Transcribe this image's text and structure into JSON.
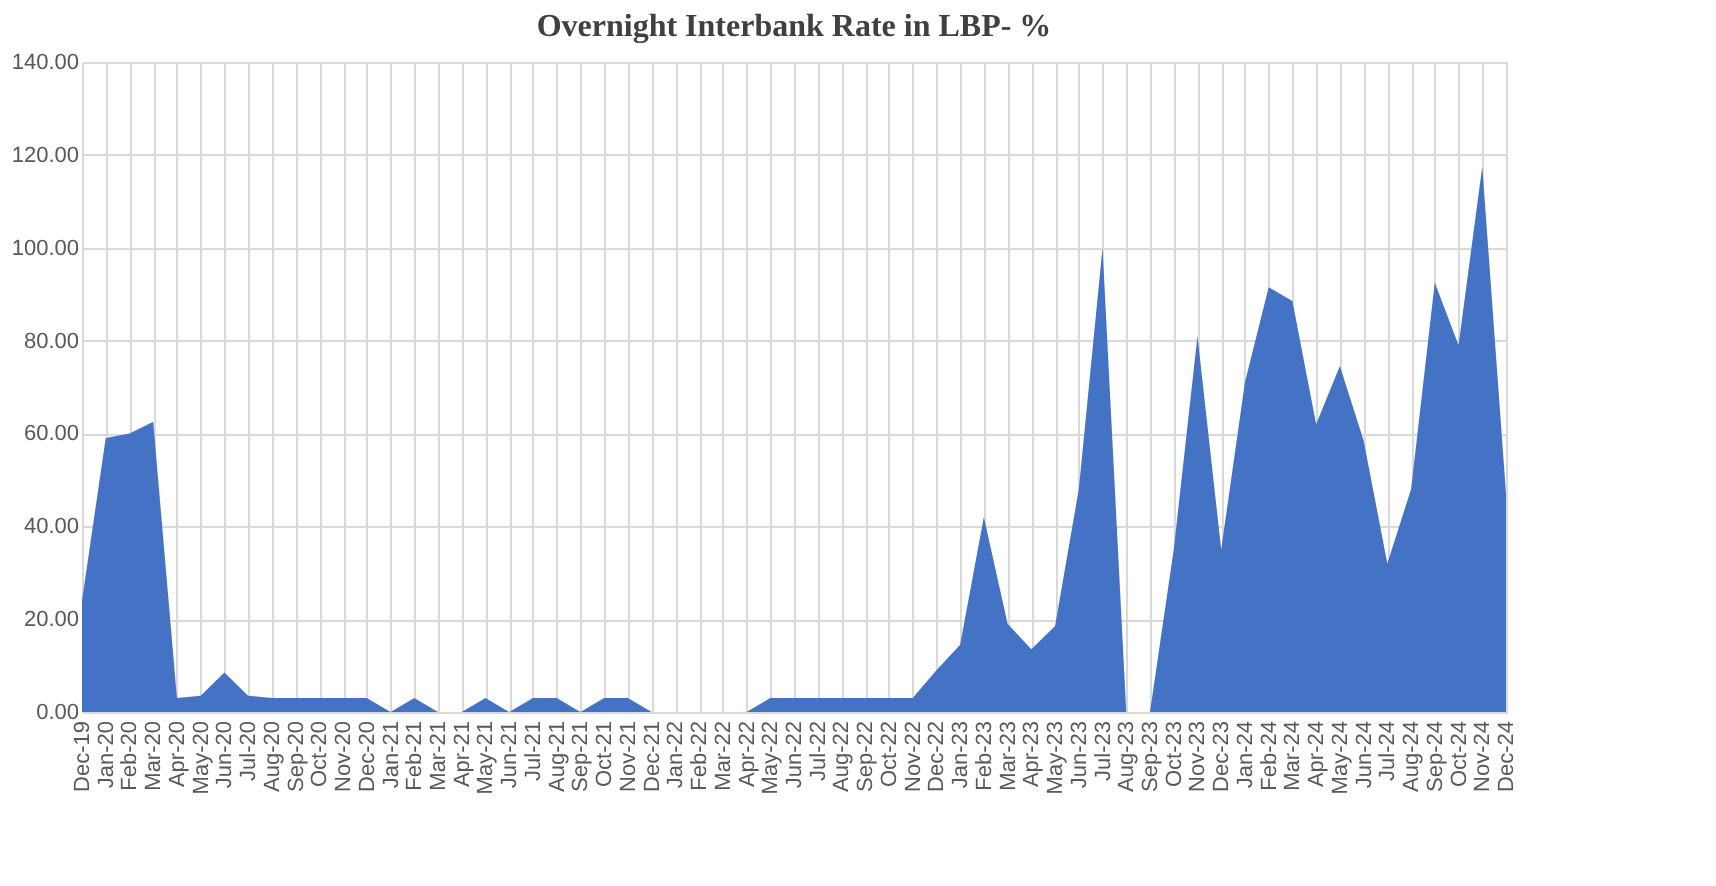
{
  "chart_data": {
    "type": "area",
    "title": "Overnight Interbank Rate in LBP- %",
    "categories": [
      "Dec-19",
      "Jan-20",
      "Feb-20",
      "Mar-20",
      "Apr-20",
      "May-20",
      "Jun-20",
      "Jul-20",
      "Aug-20",
      "Sep-20",
      "Oct-20",
      "Nov-20",
      "Dec-20",
      "Jan-21",
      "Feb-21",
      "Mar-21",
      "Apr-21",
      "May-21",
      "Jun-21",
      "Jul-21",
      "Aug-21",
      "Sep-21",
      "Oct-21",
      "Nov-21",
      "Dec-21",
      "Jan-22",
      "Feb-22",
      "Mar-22",
      "Apr-22",
      "May-22",
      "Jun-22",
      "Jul-22",
      "Aug-22",
      "Sep-22",
      "Oct-22",
      "Nov-22",
      "Dec-22",
      "Jan-23",
      "Feb-23",
      "Mar-23",
      "Apr-23",
      "May-23",
      "Jun-23",
      "Jul-23",
      "Aug-23",
      "Sep-23",
      "Oct-23",
      "Nov-23",
      "Dec-23",
      "Jan-24",
      "Feb-24",
      "Mar-24",
      "Apr-24",
      "May-24",
      "Jun-24",
      "Jul-24",
      "Aug-24",
      "Sep-24",
      "Oct-24",
      "Nov-24",
      "Dec-24"
    ],
    "series": [
      {
        "color": "#4472c4",
        "values": [
          24,
          59,
          60,
          62.5,
          3,
          3.5,
          8.5,
          3.5,
          3,
          3,
          3,
          3,
          3,
          0,
          3,
          0,
          0,
          3,
          0,
          3,
          3,
          0,
          3,
          3,
          0,
          0,
          0,
          0,
          0,
          3,
          3,
          3,
          3,
          3,
          3,
          3,
          9,
          14.5,
          42,
          19,
          13.5,
          18.5,
          48,
          100,
          0,
          0,
          35,
          81,
          35,
          71,
          91.5,
          88.5,
          62,
          74.5,
          58.5,
          32,
          48,
          92.5,
          79,
          117.5,
          47
        ]
      }
    ],
    "ylim": [
      0,
      140
    ],
    "yticks": [
      {
        "value": 0,
        "label": "0.00"
      },
      {
        "value": 20,
        "label": "20.00"
      },
      {
        "value": 40,
        "label": "40.00"
      },
      {
        "value": 60,
        "label": "60.00"
      },
      {
        "value": 80,
        "label": "80.00"
      },
      {
        "value": 100,
        "label": "100.00"
      },
      {
        "value": 120,
        "label": "120.00"
      },
      {
        "value": 140,
        "label": "140.00"
      }
    ],
    "grid": true
  }
}
